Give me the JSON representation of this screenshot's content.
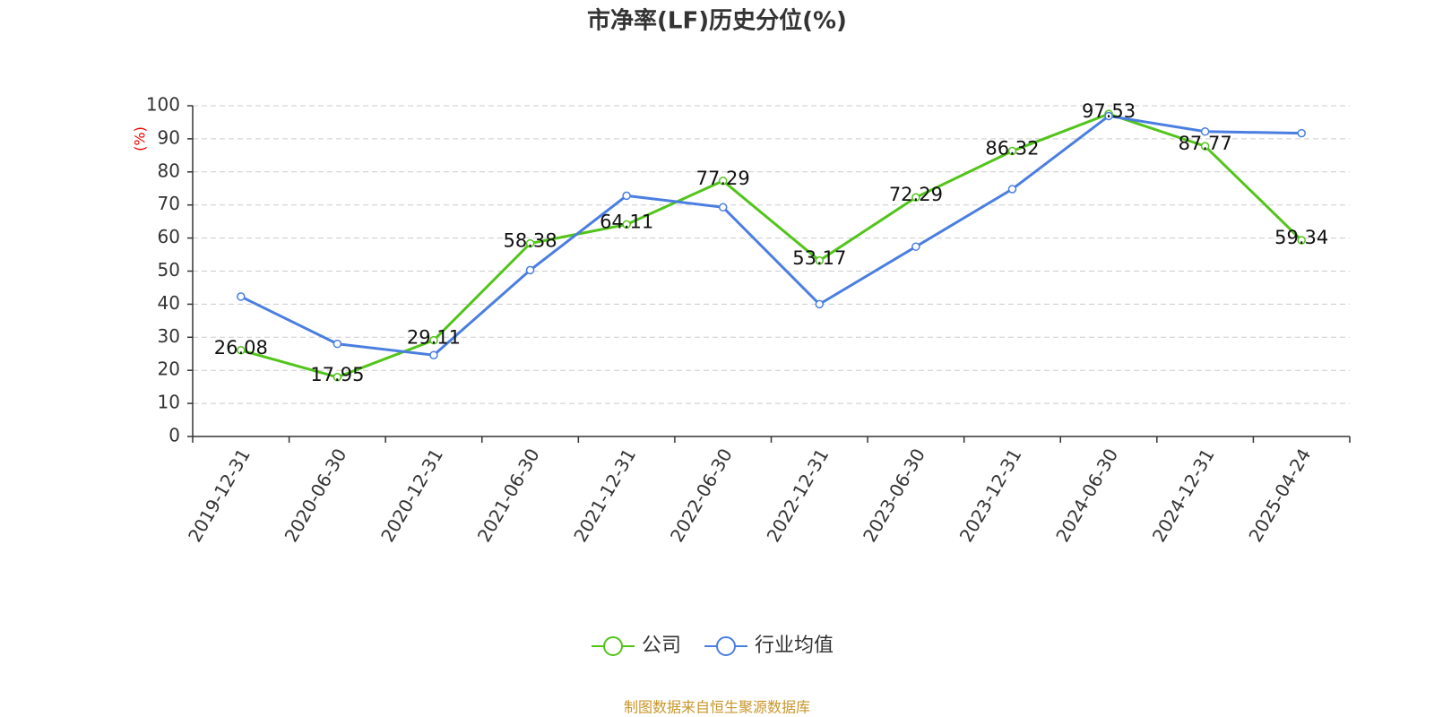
{
  "chart_data": {
    "type": "line",
    "title": "市净率(LF)历史分位(%)",
    "y_label": "(%)",
    "categories": [
      "2019-12-31",
      "2020-06-30",
      "2020-12-31",
      "2021-06-30",
      "2021-12-31",
      "2022-06-30",
      "2022-12-31",
      "2023-06-30",
      "2023-12-31",
      "2024-06-30",
      "2024-12-31",
      "2025-04-24"
    ],
    "series": [
      {
        "name": "公司",
        "color": "#52c41a",
        "values": [
          26.08,
          17.95,
          29.11,
          58.38,
          64.11,
          77.29,
          53.17,
          72.29,
          86.32,
          97.53,
          87.77,
          59.34
        ],
        "labels": true
      },
      {
        "name": "行业均值",
        "color": "#4a7ee0",
        "values": [
          42.3,
          28,
          24.6,
          50.3,
          72.8,
          69.3,
          40,
          57.4,
          74.8,
          96.9,
          92.2,
          91.7
        ],
        "labels": false
      }
    ],
    "ylim": [
      0,
      100
    ],
    "yticks": [
      0,
      10,
      20,
      30,
      40,
      50,
      60,
      70,
      80,
      90,
      100
    ],
    "grid": true,
    "legend": "bottom",
    "source": "制图数据来自恒生聚源数据库"
  }
}
